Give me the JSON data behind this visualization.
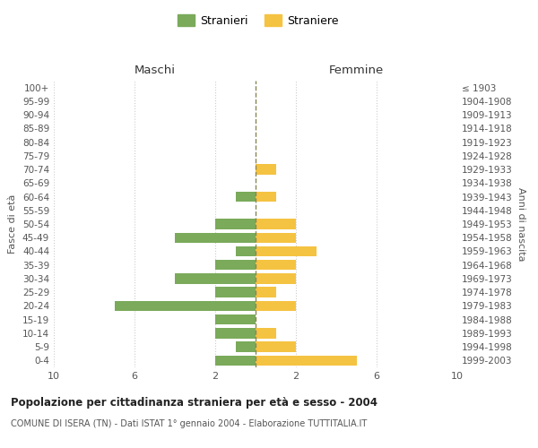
{
  "age_groups": [
    "0-4",
    "5-9",
    "10-14",
    "15-19",
    "20-24",
    "25-29",
    "30-34",
    "35-39",
    "40-44",
    "45-49",
    "50-54",
    "55-59",
    "60-64",
    "65-69",
    "70-74",
    "75-79",
    "80-84",
    "85-89",
    "90-94",
    "95-99",
    "100+"
  ],
  "birth_years": [
    "1999-2003",
    "1994-1998",
    "1989-1993",
    "1984-1988",
    "1979-1983",
    "1974-1978",
    "1969-1973",
    "1964-1968",
    "1959-1963",
    "1954-1958",
    "1949-1953",
    "1944-1948",
    "1939-1943",
    "1934-1938",
    "1929-1933",
    "1924-1928",
    "1919-1923",
    "1914-1918",
    "1909-1913",
    "1904-1908",
    "≤ 1903"
  ],
  "stranieri": [
    2,
    1,
    2,
    2,
    7,
    2,
    4,
    2,
    1,
    4,
    2,
    0,
    1,
    0,
    0,
    0,
    0,
    0,
    0,
    0,
    0
  ],
  "straniere": [
    5,
    2,
    1,
    0,
    2,
    1,
    2,
    2,
    3,
    2,
    2,
    0,
    1,
    0,
    1,
    0,
    0,
    0,
    0,
    0,
    0
  ],
  "color_stranieri": "#7aaa5a",
  "color_straniere": "#f5c342",
  "xlim": 10,
  "title": "Popolazione per cittadinanza straniera per età e sesso - 2004",
  "subtitle": "COMUNE DI ISERA (TN) - Dati ISTAT 1° gennaio 2004 - Elaborazione TUTTITALIA.IT",
  "ylabel_left": "Fasce di età",
  "ylabel_right": "Anni di nascita",
  "header_left": "Maschi",
  "header_right": "Femmine",
  "legend_stranieri": "Stranieri",
  "legend_straniere": "Straniere",
  "bg_color": "#ffffff",
  "grid_color": "#cccccc"
}
